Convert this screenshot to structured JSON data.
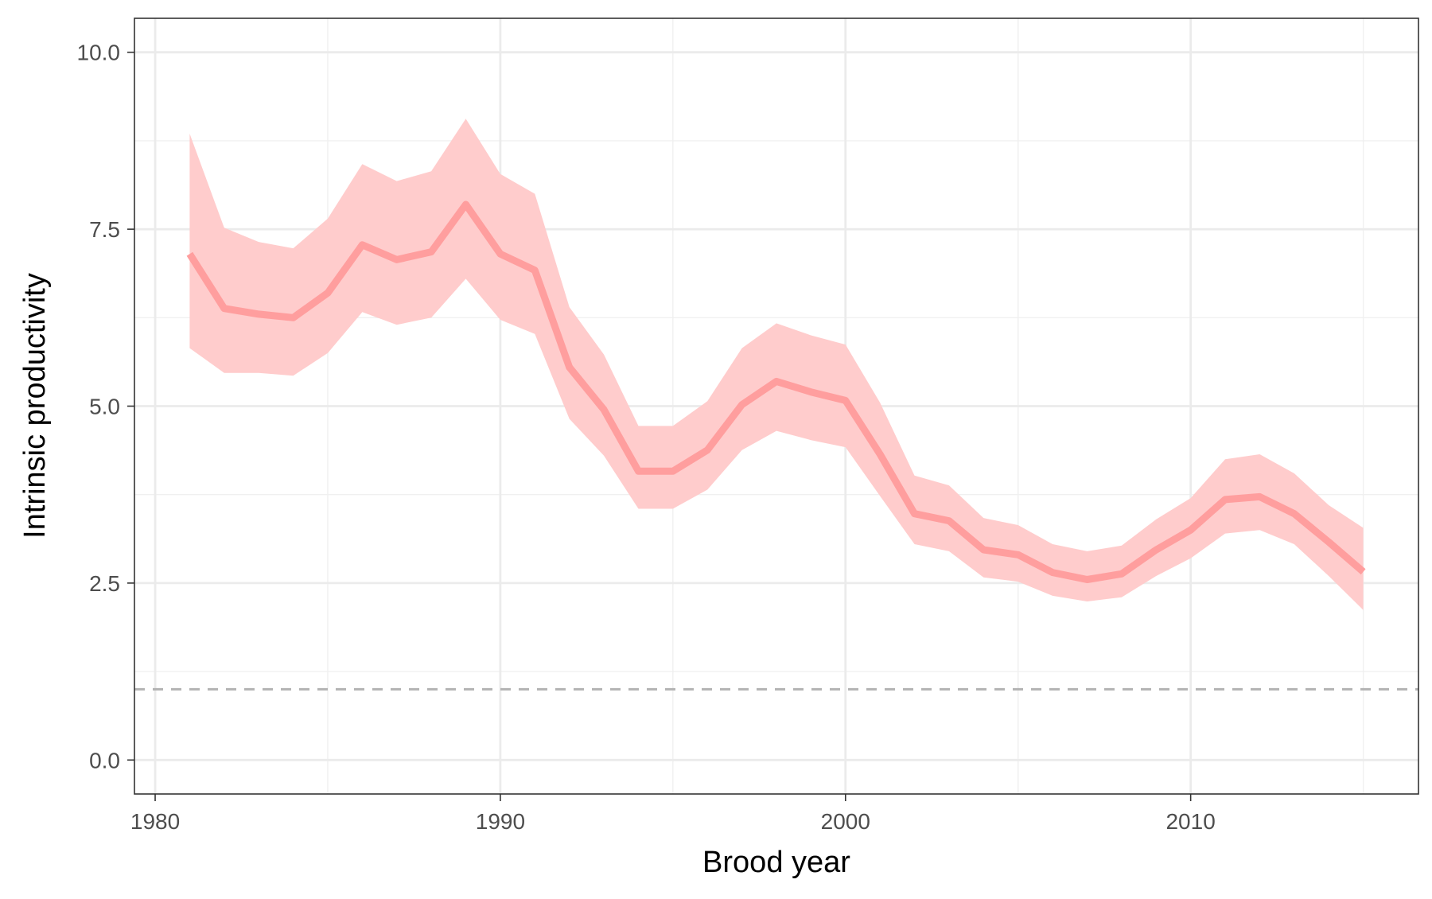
{
  "chart_data": {
    "type": "line",
    "title": "",
    "xlabel": "Brood year",
    "ylabel": "Intrinsic productivity",
    "xlim": [
      1979.4,
      2016.6
    ],
    "ylim": [
      -0.48,
      10.48
    ],
    "x_ticks": [
      1980,
      1990,
      2000,
      2010
    ],
    "x_tick_labels": [
      "1980",
      "1990",
      "2000",
      "2010"
    ],
    "y_ticks": [
      0.0,
      2.5,
      5.0,
      7.5,
      10.0
    ],
    "y_tick_labels": [
      "0.0",
      "2.5",
      "5.0",
      "7.5",
      "10.0"
    ],
    "grid": true,
    "legend": "none",
    "reference_line": {
      "y": 1.0,
      "style": "dashed",
      "color": "#b3b3b3"
    },
    "series": [
      {
        "color": "#ff9e9e",
        "ribbon_color": "#ffcccc",
        "x": [
          1981,
          1982,
          1983,
          1984,
          1985,
          1986,
          1987,
          1988,
          1989,
          1990,
          1991,
          1992,
          1993,
          1994,
          1995,
          1996,
          1997,
          1998,
          1999,
          2000,
          2001,
          2002,
          2003,
          2004,
          2005,
          2006,
          2007,
          2008,
          2009,
          2010,
          2011,
          2012,
          2013,
          2014,
          2015
        ],
        "y": [
          7.15,
          6.38,
          6.3,
          6.25,
          6.6,
          7.28,
          7.07,
          7.18,
          7.85,
          7.15,
          6.92,
          5.55,
          4.95,
          4.08,
          4.08,
          4.38,
          5.02,
          5.35,
          5.2,
          5.08,
          4.32,
          3.48,
          3.38,
          2.97,
          2.9,
          2.65,
          2.55,
          2.63,
          2.97,
          3.25,
          3.68,
          3.72,
          3.48,
          3.08,
          2.66
        ],
        "lower": [
          5.82,
          5.47,
          5.47,
          5.43,
          5.75,
          6.33,
          6.15,
          6.25,
          6.8,
          6.22,
          6.02,
          4.82,
          4.3,
          3.55,
          3.55,
          3.82,
          4.38,
          4.65,
          4.52,
          4.42,
          3.73,
          3.05,
          2.95,
          2.58,
          2.52,
          2.32,
          2.24,
          2.3,
          2.6,
          2.85,
          3.2,
          3.25,
          3.05,
          2.6,
          2.12
        ],
        "upper": [
          8.85,
          7.52,
          7.32,
          7.23,
          7.65,
          8.42,
          8.18,
          8.32,
          9.06,
          8.28,
          8.0,
          6.4,
          5.73,
          4.72,
          4.72,
          5.07,
          5.82,
          6.17,
          6.0,
          5.87,
          5.05,
          4.02,
          3.88,
          3.42,
          3.32,
          3.05,
          2.95,
          3.03,
          3.4,
          3.7,
          4.25,
          4.32,
          4.05,
          3.6,
          3.28
        ]
      }
    ]
  }
}
